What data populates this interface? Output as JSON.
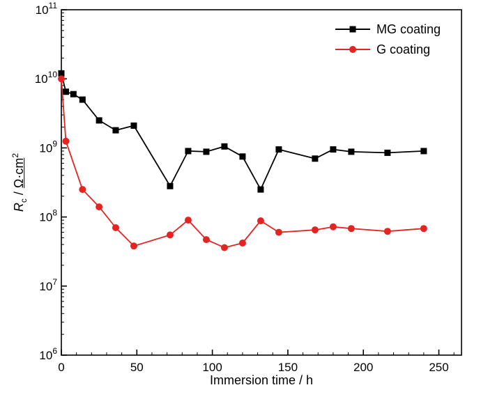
{
  "chart_data": {
    "type": "line",
    "title": "",
    "xlabel": "Immersion time / h",
    "ylabel_parts": {
      "symbol": "R",
      "subscript": "c",
      "separator": " / ",
      "units": "Ω·cm",
      "superscript": "2"
    },
    "xlim": [
      0,
      265
    ],
    "x_ticks": [
      0,
      50,
      100,
      150,
      200,
      250
    ],
    "x_minor_step": 10,
    "y_scale": "log",
    "y_exponents": [
      6,
      7,
      8,
      9,
      10,
      11
    ],
    "grid": false,
    "legend_position": "top-right",
    "frame_color": "#000000",
    "series": [
      {
        "name": "MG coating",
        "color": "#000000",
        "marker": "square",
        "x": [
          0,
          3,
          8,
          14,
          25,
          36,
          48,
          72,
          84,
          96,
          108,
          120,
          132,
          144,
          168,
          180,
          192,
          216,
          240
        ],
        "y": [
          12000000000.0,
          6500000000.0,
          6000000000.0,
          5000000000.0,
          2500000000.0,
          1800000000.0,
          2100000000.0,
          280000000.0,
          900000000.0,
          880000000.0,
          1050000000.0,
          750000000.0,
          250000000.0,
          950000000.0,
          700000000.0,
          950000000.0,
          880000000.0,
          850000000.0,
          900000000.0
        ]
      },
      {
        "name": "G coating",
        "color": "#e42421",
        "marker": "circle",
        "x": [
          0,
          3,
          14,
          25,
          36,
          48,
          72,
          84,
          96,
          108,
          120,
          132,
          144,
          168,
          180,
          192,
          216,
          240
        ],
        "y": [
          10000000000.0,
          1250000000.0,
          250000000.0,
          140000000.0,
          70000000.0,
          38000000.0,
          55000000.0,
          90000000.0,
          47000000.0,
          36000000.0,
          42000000.0,
          88000000.0,
          60000000.0,
          65000000.0,
          72000000.0,
          68000000.0,
          62000000.0,
          68000000.0
        ]
      }
    ]
  }
}
